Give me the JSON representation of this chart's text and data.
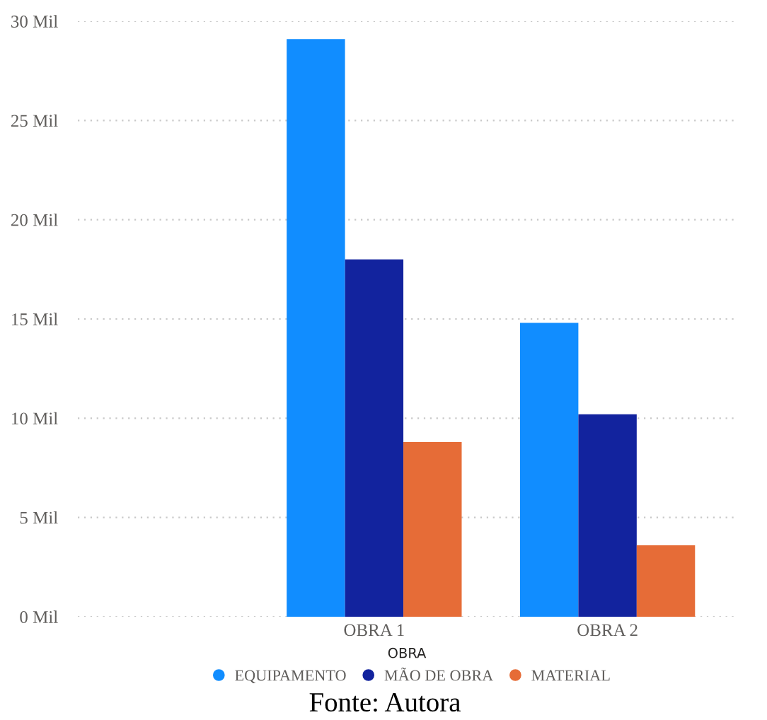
{
  "chart_data": {
    "type": "bar",
    "xlabel": "OBRA",
    "categories": [
      "OBRA 1",
      "OBRA 2"
    ],
    "series": [
      {
        "name": "EQUIPAMENTO",
        "color": "#118dff",
        "values": [
          29.1,
          14.8
        ]
      },
      {
        "name": "MÃO DE OBRA",
        "color": "#12239e",
        "values": [
          18.0,
          10.2
        ]
      },
      {
        "name": "MATERIAL",
        "color": "#e66c37",
        "values": [
          8.8,
          3.6
        ]
      }
    ],
    "ylim": [
      0,
      30
    ],
    "yticks": [
      {
        "value": 0,
        "label": "0 Mil"
      },
      {
        "value": 5,
        "label": "5 Mil"
      },
      {
        "value": 10,
        "label": "10 Mil"
      },
      {
        "value": 15,
        "label": "15 Mil"
      },
      {
        "value": 20,
        "label": "20 Mil"
      },
      {
        "value": 25,
        "label": "25 Mil"
      },
      {
        "value": 30,
        "label": "30 Mil"
      }
    ],
    "grid": "y",
    "legend": "bottom",
    "annotations": [
      "Fonte: Autora"
    ]
  }
}
